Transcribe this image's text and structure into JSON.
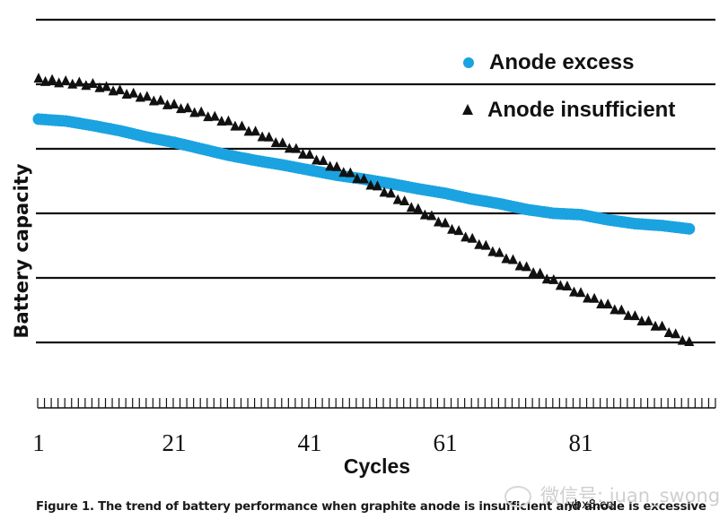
{
  "chart_data": {
    "type": "scatter",
    "title": "",
    "xlabel": "Cycles",
    "ylabel": "Battery capacity",
    "xlim": [
      1,
      101
    ],
    "ylim": [
      45,
      100
    ],
    "x_tick_labels": [
      "1",
      "21",
      "41",
      "61",
      "81"
    ],
    "x_ticks": [
      1,
      21,
      41,
      61,
      81
    ],
    "minor_tick_count": 101,
    "y_gridlines": [
      100,
      90,
      80,
      70,
      60,
      50
    ],
    "y_tick_labels": [],
    "grid": true,
    "legend_position": "top-right",
    "series": [
      {
        "name": "Anode excess",
        "marker": "circle",
        "color": "#1aa3e0",
        "x": [
          1,
          5,
          9,
          13,
          17,
          21,
          25,
          29,
          33,
          37,
          41,
          45,
          49,
          53,
          57,
          61,
          65,
          69,
          73,
          77,
          81,
          85,
          89,
          93,
          97
        ],
        "values": [
          84.6,
          84.3,
          83.6,
          82.8,
          81.8,
          81.0,
          80.0,
          79.0,
          78.2,
          77.5,
          76.7,
          75.9,
          75.3,
          74.6,
          73.8,
          73.1,
          72.2,
          71.5,
          70.6,
          70.0,
          69.8,
          69.0,
          68.4,
          68.1,
          67.6
        ]
      },
      {
        "name": "Anode insufficient",
        "marker": "triangle",
        "color": "#111111",
        "x": [
          1,
          5,
          9,
          13,
          17,
          21,
          25,
          29,
          33,
          37,
          41,
          45,
          49,
          53,
          57,
          61,
          65,
          69,
          73,
          77,
          81,
          85,
          89,
          93,
          97
        ],
        "values": [
          90.6,
          90.2,
          89.8,
          88.8,
          87.8,
          86.6,
          85.4,
          84.0,
          82.4,
          80.6,
          78.8,
          76.9,
          75.0,
          72.8,
          70.4,
          68.2,
          65.8,
          63.6,
          61.4,
          59.4,
          57.4,
          55.6,
          53.8,
          52.2,
          49.8
        ]
      }
    ]
  },
  "caption": "Figure 1. The trend of battery performance when graphite anode is insufficient and anode is excessive",
  "watermark": {
    "text": "微信号: juan_swong",
    "overlay": "ybx8.cn"
  }
}
